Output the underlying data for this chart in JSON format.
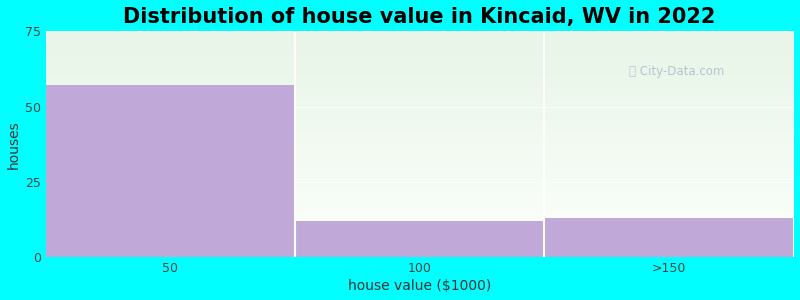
{
  "title": "Distribution of house value in Kincaid, WV in 2022",
  "xlabel": "house value ($1000)",
  "ylabel": "houses",
  "categories": [
    "50",
    "100",
    ">150"
  ],
  "values": [
    57,
    12,
    13
  ],
  "bar_color": "#c0a8d8",
  "ylim": [
    0,
    75
  ],
  "yticks": [
    0,
    25,
    50,
    75
  ],
  "background_color": "#00ffff",
  "plot_bg_top": "#e8f5e8",
  "plot_bg_bottom": "#f8fff8",
  "title_fontsize": 15,
  "axis_label_fontsize": 10,
  "tick_fontsize": 9,
  "watermark": "City-Data.com",
  "grid_color": "#dddddd",
  "bin_edges": [
    0,
    1,
    2,
    3
  ],
  "figsize": [
    8.0,
    3.0
  ],
  "dpi": 100
}
